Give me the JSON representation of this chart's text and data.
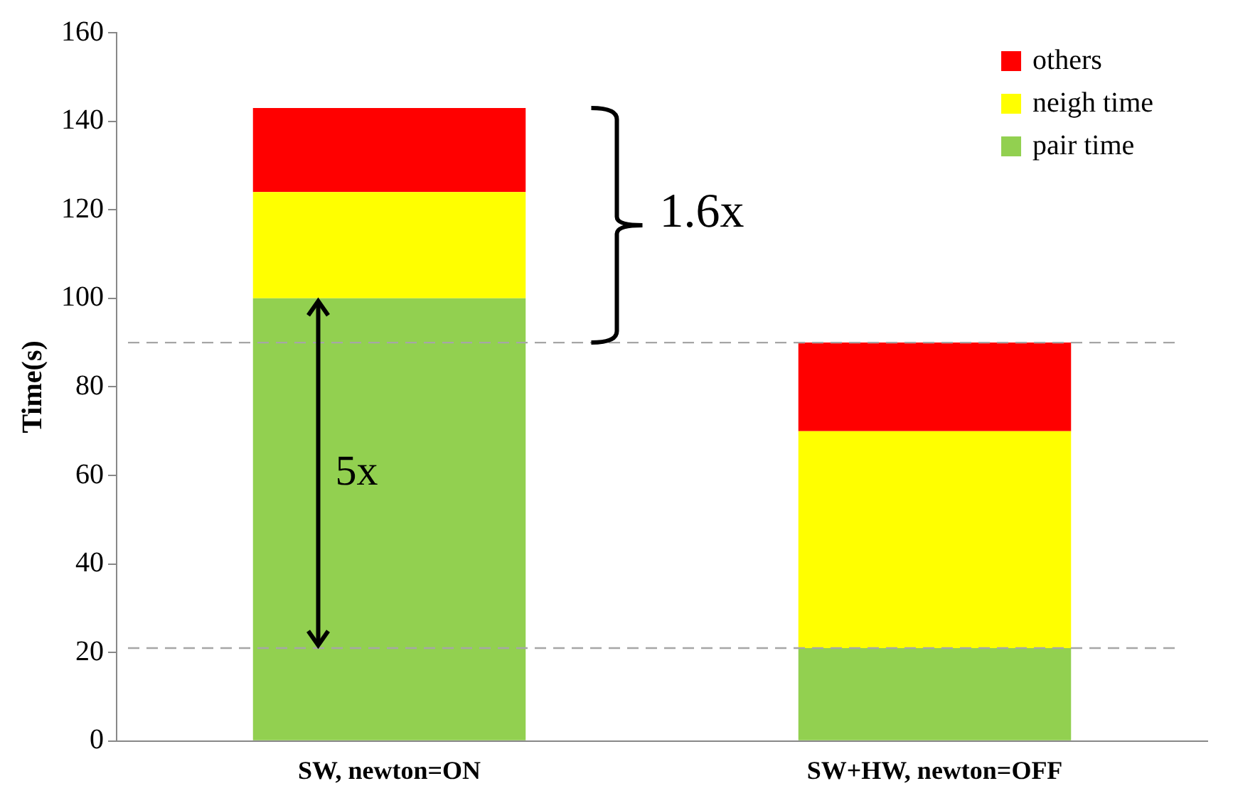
{
  "chart_data": {
    "type": "bar",
    "stacked": true,
    "ylabel": "Time(s)",
    "categories": [
      "SW, newton=ON",
      "SW+HW, newton=OFF"
    ],
    "series": [
      {
        "name": "pair time",
        "color": "#92d050",
        "values": [
          100,
          21
        ]
      },
      {
        "name": "neigh time",
        "color": "#ffff00",
        "values": [
          24,
          49
        ]
      },
      {
        "name": "others",
        "color": "#ff0000",
        "values": [
          19,
          20
        ]
      }
    ],
    "ylim": [
      0,
      160
    ],
    "yticks": [
      0,
      20,
      40,
      60,
      80,
      100,
      120,
      140,
      160
    ],
    "grid": false,
    "legend": "top right",
    "ref_lines": [
      {
        "axis": "y",
        "value": 90,
        "color": "#a6a6a6",
        "line_style": "dashed"
      },
      {
        "axis": "y",
        "value": 21,
        "color": "#a6a6a6",
        "line_style": "dashed"
      }
    ],
    "annotations": [
      "1.6x",
      "5x"
    ]
  }
}
